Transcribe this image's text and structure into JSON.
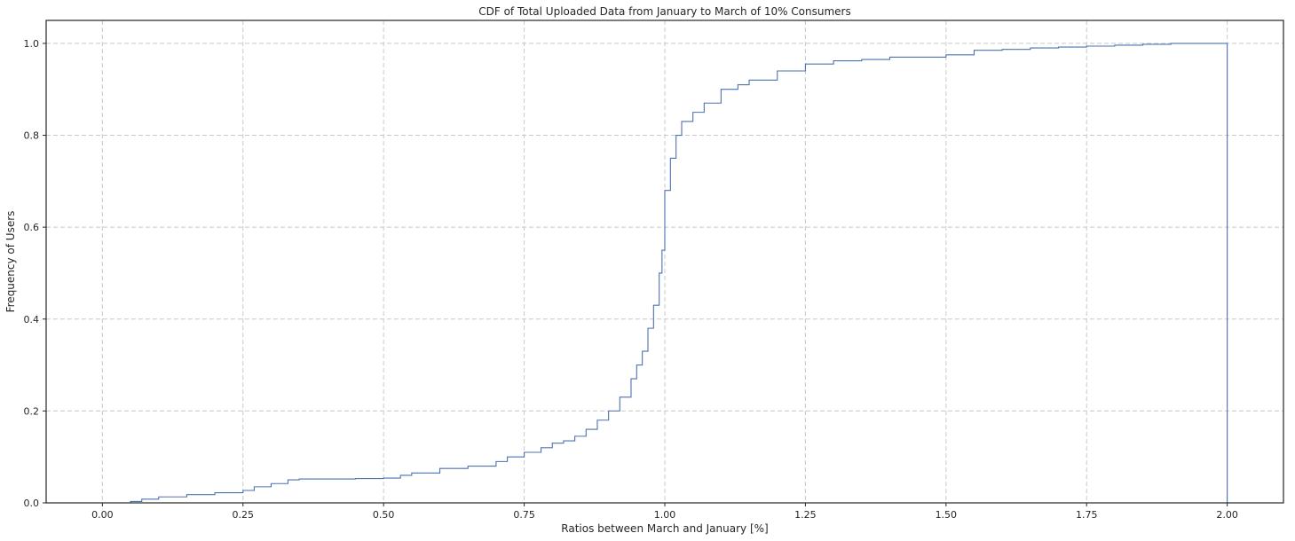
{
  "chart_data": {
    "type": "line",
    "title": "CDF of Total Uploaded Data from January to March of 10% Consumers",
    "xlabel": "Ratios between March and January [%]",
    "ylabel": "Frequency of Users",
    "xlim": [
      -0.1,
      2.1
    ],
    "ylim": [
      0.0,
      1.05
    ],
    "xticks": [
      0.0,
      0.25,
      0.5,
      0.75,
      1.0,
      1.25,
      1.5,
      1.75,
      2.0
    ],
    "xtick_labels": [
      "0.00",
      "0.25",
      "0.50",
      "0.75",
      "1.00",
      "1.25",
      "1.50",
      "1.75",
      "2.00"
    ],
    "yticks": [
      0.0,
      0.2,
      0.4,
      0.6,
      0.8,
      1.0
    ],
    "ytick_labels": [
      "0.0",
      "0.2",
      "0.4",
      "0.6",
      "0.8",
      "1.0"
    ],
    "grid": true,
    "line_color": "#4c72b0",
    "series": [
      {
        "x": [
          0.02,
          0.05,
          0.07,
          0.1,
          0.15,
          0.2,
          0.25,
          0.27,
          0.3,
          0.33,
          0.35,
          0.4,
          0.45,
          0.5,
          0.53,
          0.55,
          0.6,
          0.65,
          0.7,
          0.72,
          0.75,
          0.78,
          0.8,
          0.82,
          0.84,
          0.86,
          0.88,
          0.9,
          0.92,
          0.94,
          0.95,
          0.96,
          0.97,
          0.98,
          0.99,
          0.995,
          1.0,
          1.01,
          1.02,
          1.03,
          1.05,
          1.07,
          1.1,
          1.13,
          1.15,
          1.2,
          1.25,
          1.3,
          1.35,
          1.4,
          1.5,
          1.55,
          1.6,
          1.65,
          1.7,
          1.75,
          1.8,
          1.85,
          1.9,
          1.95,
          2.0,
          2.0
        ],
        "y": [
          0.0,
          0.003,
          0.008,
          0.013,
          0.018,
          0.022,
          0.027,
          0.035,
          0.042,
          0.05,
          0.052,
          0.052,
          0.053,
          0.054,
          0.06,
          0.065,
          0.075,
          0.08,
          0.09,
          0.1,
          0.11,
          0.12,
          0.13,
          0.135,
          0.145,
          0.16,
          0.18,
          0.2,
          0.23,
          0.27,
          0.3,
          0.33,
          0.38,
          0.43,
          0.5,
          0.55,
          0.68,
          0.75,
          0.8,
          0.83,
          0.85,
          0.87,
          0.9,
          0.91,
          0.92,
          0.94,
          0.955,
          0.962,
          0.965,
          0.97,
          0.975,
          0.985,
          0.987,
          0.99,
          0.992,
          0.994,
          0.996,
          0.998,
          1.0,
          1.0,
          1.0,
          0.0
        ]
      }
    ]
  }
}
